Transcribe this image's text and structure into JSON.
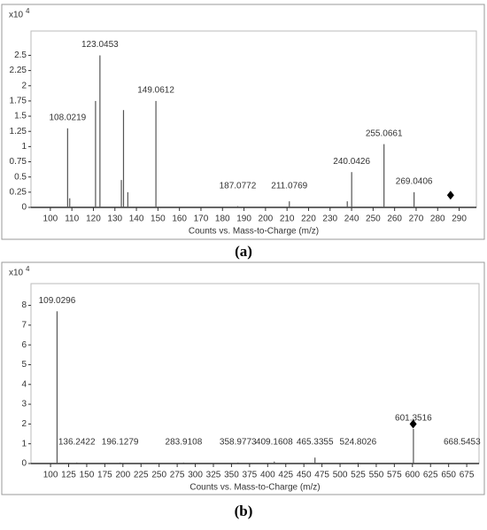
{
  "chart_data": [
    {
      "type": "spectrum",
      "y_multiplier": "x10",
      "y_exponent": "4",
      "x_label": "Counts vs. Mass-to-Charge (m/z)",
      "caption": "(a)",
      "xlim": [
        91,
        298
      ],
      "ylim": [
        0,
        2.9
      ],
      "xticks": [
        100,
        110,
        120,
        130,
        140,
        150,
        160,
        170,
        180,
        190,
        200,
        210,
        220,
        230,
        240,
        250,
        260,
        270,
        280,
        290
      ],
      "yticks": [
        0,
        0.25,
        0.5,
        0.75,
        1,
        1.25,
        1.5,
        1.75,
        2,
        2.25,
        2.5
      ],
      "color": "#555555",
      "peaks": {
        "x": [
          108.0219,
          123.0453,
          149.0612,
          187.0772,
          211.0769,
          240.0426,
          255.0661,
          269.0406
        ],
        "values": [
          1.3,
          2.5,
          1.75,
          0.02,
          0.1,
          0.58,
          1.04,
          0.25
        ]
      },
      "minor_peaks": {
        "x": [
          109,
          121,
          133,
          134,
          136,
          238
        ],
        "values": [
          0.15,
          1.75,
          0.45,
          1.6,
          0.25,
          0.1
        ]
      },
      "precursor": {
        "x": 286,
        "y": 0.2
      }
    },
    {
      "type": "spectrum",
      "y_multiplier": "x10",
      "y_exponent": "4",
      "x_label": "Counts vs. Mass-to-Charge (m/z)",
      "caption": "(b)",
      "xlim": [
        73,
        692
      ],
      "ylim": [
        0,
        9.1
      ],
      "xticks": [
        100,
        125,
        150,
        175,
        200,
        225,
        250,
        275,
        300,
        325,
        350,
        375,
        400,
        425,
        450,
        475,
        500,
        525,
        550,
        575,
        600,
        625,
        650,
        675
      ],
      "yticks": [
        0,
        1,
        2,
        3,
        4,
        5,
        6,
        7,
        8
      ],
      "color": "#555555",
      "peaks": {
        "x": [
          109.0296,
          136.2422,
          196.1279,
          283.9108,
          358.9773,
          409.1608,
          465.3355,
          524.8026,
          601.3516,
          668.5453
        ],
        "values": [
          7.7,
          0.05,
          0.05,
          0.05,
          0.05,
          0.1,
          0.3,
          0.05,
          1.75,
          0.03
        ]
      },
      "minor_peaks": {
        "x": [],
        "values": []
      },
      "precursor": {
        "x": 601,
        "y": 2.0
      }
    }
  ]
}
